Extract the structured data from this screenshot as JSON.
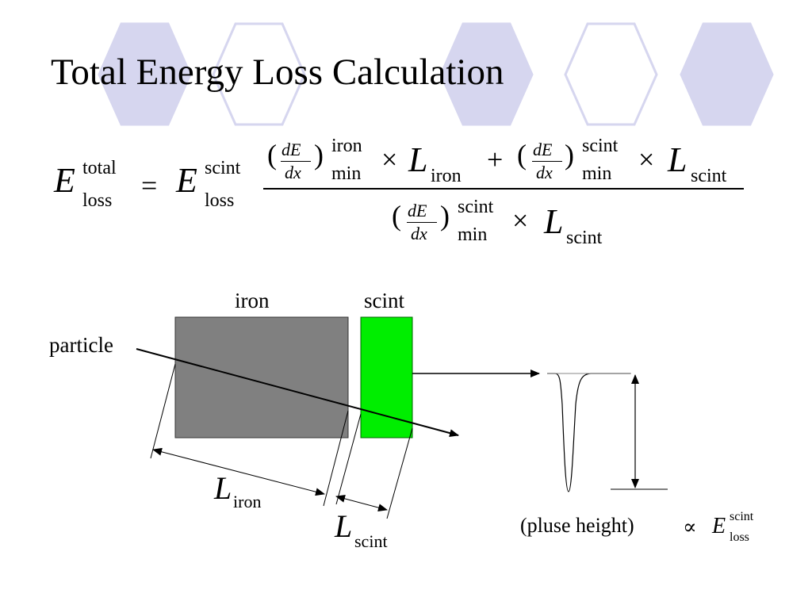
{
  "slide": {
    "title": "Total Energy Loss Calculation",
    "colors": {
      "hex_fill": "#d6d6ef",
      "hex_stroke": "#d6d6ef",
      "iron_fill": "#808080",
      "scint_fill": "#00ee00"
    }
  },
  "formula": {
    "lhs_symbol": "E",
    "lhs_sup": "total",
    "lhs_sub": "loss",
    "equals": "=",
    "factor_symbol": "E",
    "factor_sup": "scint",
    "factor_sub": "loss",
    "lparen": "(",
    "rparen": ")",
    "dE": "dE",
    "dx": "dx",
    "sup_iron": "iron",
    "sup_scint": "scint",
    "sub_min": "min",
    "times": "×",
    "plus": "+",
    "L": "L",
    "sub_iron": "iron",
    "sub_scint": "scint"
  },
  "diagram": {
    "iron_label": "iron",
    "scint_label": "scint",
    "particle_label": "particle",
    "L_symbol": "L",
    "L_iron_sub": "iron",
    "L_scint_sub": "scint",
    "pulse_caption": "(pluse height)",
    "proportional": "∝",
    "E_symbol": "E",
    "E_sup": "scint",
    "E_sub": "loss"
  }
}
